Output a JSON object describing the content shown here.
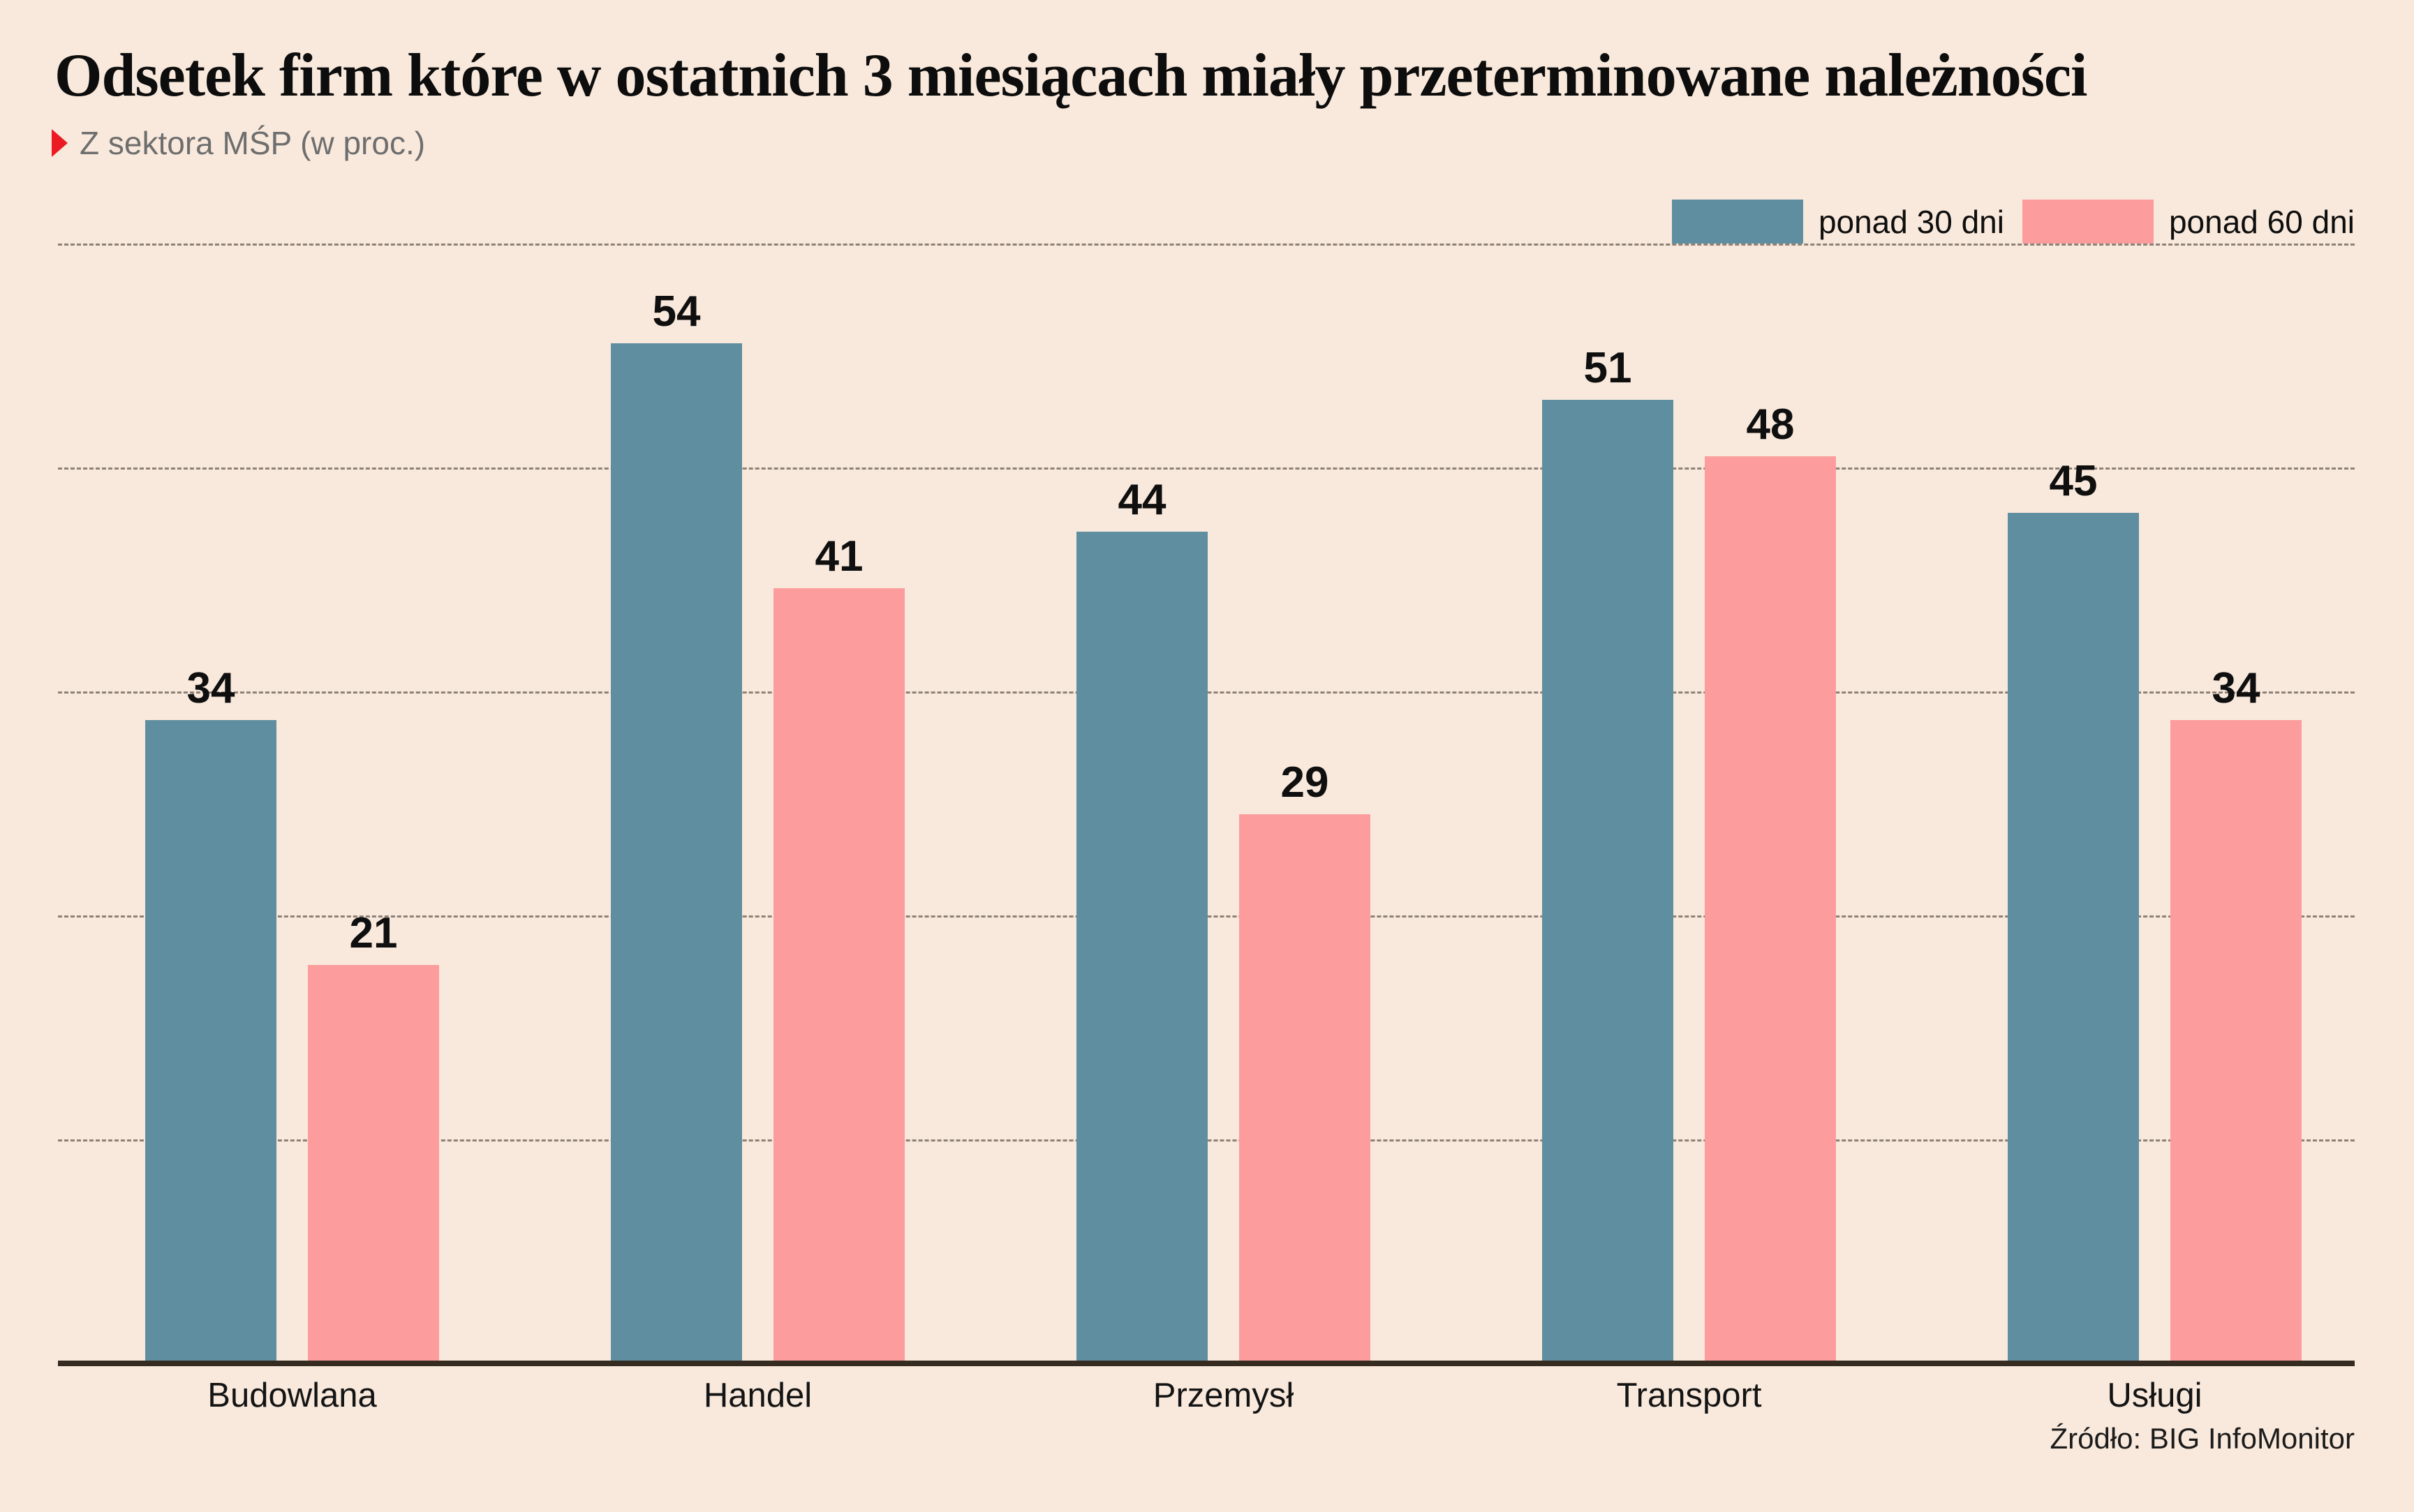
{
  "chart_data": {
    "type": "bar",
    "title": "Odsetek firm które w ostatnich 3 miesiącach miały przeterminowane należności",
    "subtitle": "Z sektora MŚP (w proc.)",
    "categories": [
      "Budowlana",
      "Handel",
      "Przemysł",
      "Transport",
      "Usługi"
    ],
    "series": [
      {
        "name": "ponad 30 dni",
        "color": "#5f8ea1",
        "values": [
          34,
          54,
          44,
          51,
          45
        ]
      },
      {
        "name": "ponad 60 dni",
        "color": "#fc9c9c",
        "values": [
          21,
          41,
          29,
          48,
          34
        ]
      }
    ],
    "ylim": [
      0,
      60
    ],
    "grid": "horizontal-dashed",
    "legend_position": "top-right",
    "source": "Źródło: BIG InfoMonitor"
  },
  "colors": {
    "background": "#f9e9dc",
    "series_30dni": "#5f8ea1",
    "series_60dni": "#fc9c9c",
    "subtitle_marker_red": "#ec1b23",
    "axis_line": "#362b20",
    "gridline": "#8d8177",
    "title_text": "#0d0d0d",
    "subtitle_text": "#6e6e6e"
  }
}
